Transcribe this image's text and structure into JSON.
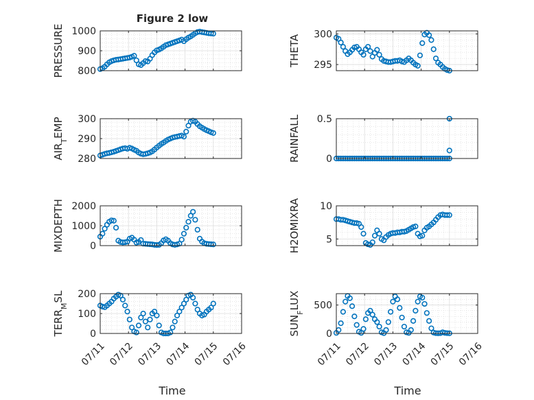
{
  "chart_data": [
    {
      "type": "scatter",
      "title": "Figure 2 low",
      "xlabel": "",
      "ylabel": "PRESSURE",
      "xlim": [
        "07/11",
        "07/16"
      ],
      "ylim": [
        800,
        1000
      ],
      "xticks": [
        "07/11",
        "07/12",
        "07/13",
        "07/14",
        "07/15",
        "07/16"
      ],
      "yticks": [
        800,
        900,
        1000
      ],
      "grid": true,
      "series": [
        {
          "color": "#0072BD",
          "x": [
            0.0,
            0.08,
            0.16,
            0.24,
            0.32,
            0.4,
            0.48,
            0.56,
            0.64,
            0.72,
            0.8,
            0.88,
            0.96,
            1.04,
            1.12,
            1.2,
            1.28,
            1.36,
            1.44,
            1.52,
            1.6,
            1.68,
            1.76,
            1.84,
            1.92,
            2.0,
            2.08,
            2.16,
            2.24,
            2.32,
            2.4,
            2.48,
            2.56,
            2.64,
            2.72,
            2.8,
            2.88,
            2.96,
            3.04,
            3.12,
            3.2,
            3.28,
            3.36,
            3.44,
            3.52,
            3.6,
            3.68,
            3.76,
            3.84,
            3.92,
            4.0
          ],
          "y": [
            808,
            812,
            820,
            832,
            842,
            848,
            852,
            855,
            856,
            858,
            860,
            862,
            864,
            866,
            870,
            875,
            852,
            832,
            828,
            838,
            848,
            846,
            860,
            878,
            892,
            902,
            906,
            912,
            920,
            928,
            932,
            936,
            940,
            944,
            948,
            952,
            956,
            948,
            958,
            966,
            972,
            980,
            988,
            994,
            996,
            994,
            992,
            990,
            988,
            987,
            986
          ]
        }
      ]
    },
    {
      "type": "scatter",
      "ylabel": "THETA",
      "xlim": [
        "07/11",
        "07/16"
      ],
      "ylim": [
        294,
        300.5
      ],
      "xticks": [
        "07/11",
        "07/12",
        "07/13",
        "07/14",
        "07/15",
        "07/16"
      ],
      "yticks": [
        295,
        300
      ],
      "grid": true,
      "series": [
        {
          "color": "#0072BD",
          "x": [
            0.0,
            0.08,
            0.16,
            0.24,
            0.32,
            0.4,
            0.48,
            0.56,
            0.64,
            0.72,
            0.8,
            0.88,
            0.96,
            1.04,
            1.12,
            1.2,
            1.28,
            1.36,
            1.44,
            1.52,
            1.6,
            1.68,
            1.76,
            1.84,
            1.92,
            2.0,
            2.08,
            2.16,
            2.24,
            2.32,
            2.4,
            2.48,
            2.56,
            2.64,
            2.72,
            2.8,
            2.88,
            2.96,
            3.04,
            3.12,
            3.2,
            3.28,
            3.36,
            3.44,
            3.52,
            3.6,
            3.68,
            3.76,
            3.84,
            3.92,
            4.0
          ],
          "y": [
            299.4,
            299.2,
            298.6,
            297.9,
            297.2,
            296.7,
            297.0,
            297.4,
            297.8,
            297.9,
            297.5,
            297.0,
            296.6,
            297.5,
            297.9,
            297.2,
            296.3,
            296.9,
            297.4,
            296.6,
            295.9,
            295.6,
            295.5,
            295.4,
            295.4,
            295.5,
            295.6,
            295.6,
            295.7,
            295.5,
            295.4,
            295.7,
            296.0,
            295.7,
            295.3,
            295.0,
            294.8,
            296.5,
            298.5,
            299.9,
            300.2,
            299.8,
            299.0,
            297.5,
            296.0,
            295.3,
            295.0,
            294.6,
            294.3,
            294.1,
            294.0
          ]
        }
      ]
    },
    {
      "type": "scatter",
      "ylabel": "AIR_TEMP",
      "xlim": [
        "07/11",
        "07/16"
      ],
      "ylim": [
        280,
        300
      ],
      "xticks": [
        "07/11",
        "07/12",
        "07/13",
        "07/14",
        "07/15",
        "07/16"
      ],
      "yticks": [
        280,
        290,
        300
      ],
      "grid": true,
      "series": [
        {
          "color": "#0072BD",
          "x": [
            0.0,
            0.08,
            0.16,
            0.24,
            0.32,
            0.4,
            0.48,
            0.56,
            0.64,
            0.72,
            0.8,
            0.88,
            0.96,
            1.04,
            1.12,
            1.2,
            1.28,
            1.36,
            1.44,
            1.52,
            1.6,
            1.68,
            1.76,
            1.84,
            1.92,
            2.0,
            2.08,
            2.16,
            2.24,
            2.32,
            2.4,
            2.48,
            2.56,
            2.64,
            2.72,
            2.8,
            2.88,
            2.96,
            3.04,
            3.12,
            3.2,
            3.28,
            3.36,
            3.44,
            3.52,
            3.6,
            3.68,
            3.76,
            3.84,
            3.92,
            4.0
          ],
          "y": [
            281.5,
            281.9,
            282.3,
            282.6,
            282.8,
            283.1,
            283.4,
            283.8,
            284.2,
            284.6,
            285.0,
            285.2,
            284.9,
            285.4,
            285.0,
            284.4,
            283.9,
            283.0,
            282.4,
            282.1,
            282.3,
            282.6,
            283.0,
            283.6,
            284.5,
            285.5,
            286.4,
            287.3,
            288.0,
            288.8,
            289.5,
            290.0,
            290.5,
            290.8,
            291.0,
            291.3,
            291.5,
            291.0,
            293.5,
            296.5,
            298.5,
            299.0,
            298.5,
            297.3,
            296.2,
            295.5,
            294.8,
            294.2,
            293.7,
            293.2,
            292.8
          ]
        }
      ]
    },
    {
      "type": "scatter",
      "ylabel": "RAINFALL",
      "xlim": [
        "07/11",
        "07/16"
      ],
      "ylim": [
        0,
        0.5
      ],
      "xticks": [
        "07/11",
        "07/12",
        "07/13",
        "07/14",
        "07/15",
        "07/16"
      ],
      "yticks": [
        0,
        0.5
      ],
      "grid": true,
      "series": [
        {
          "color": "#0072BD",
          "x": [
            0.0,
            0.08,
            0.16,
            0.24,
            0.32,
            0.4,
            0.48,
            0.56,
            0.64,
            0.72,
            0.8,
            0.88,
            0.96,
            1.04,
            1.12,
            1.2,
            1.28,
            1.36,
            1.44,
            1.52,
            1.6,
            1.68,
            1.76,
            1.84,
            1.92,
            2.0,
            2.08,
            2.16,
            2.24,
            2.32,
            2.4,
            2.48,
            2.56,
            2.64,
            2.72,
            2.8,
            2.88,
            2.96,
            3.04,
            3.12,
            3.2,
            3.28,
            3.36,
            3.44,
            3.52,
            3.6,
            3.68,
            3.76,
            3.84,
            3.92,
            4.0,
            4.0,
            4.0
          ],
          "y": [
            0,
            0,
            0,
            0,
            0,
            0,
            0,
            0,
            0,
            0,
            0,
            0,
            0,
            0,
            0,
            0,
            0,
            0,
            0,
            0,
            0,
            0,
            0,
            0,
            0,
            0,
            0,
            0,
            0,
            0,
            0,
            0,
            0,
            0,
            0,
            0,
            0,
            0,
            0,
            0,
            0,
            0,
            0,
            0,
            0,
            0,
            0,
            0,
            0,
            0,
            0,
            0.1,
            0.5
          ]
        }
      ]
    },
    {
      "type": "scatter",
      "ylabel": "MIXDEPTH",
      "xlim": [
        "07/11",
        "07/16"
      ],
      "ylim": [
        0,
        2000
      ],
      "xticks": [
        "07/11",
        "07/12",
        "07/13",
        "07/14",
        "07/15",
        "07/16"
      ],
      "yticks": [
        0,
        1000,
        2000
      ],
      "grid": true,
      "series": [
        {
          "color": "#0072BD",
          "x": [
            0.0,
            0.08,
            0.16,
            0.24,
            0.32,
            0.4,
            0.48,
            0.56,
            0.64,
            0.72,
            0.8,
            0.88,
            0.96,
            1.04,
            1.12,
            1.2,
            1.28,
            1.36,
            1.44,
            1.52,
            1.6,
            1.68,
            1.76,
            1.84,
            1.92,
            2.0,
            2.08,
            2.16,
            2.24,
            2.32,
            2.4,
            2.48,
            2.56,
            2.64,
            2.72,
            2.8,
            2.88,
            2.96,
            3.04,
            3.12,
            3.2,
            3.28,
            3.36,
            3.44,
            3.52,
            3.6,
            3.68,
            3.76,
            3.84,
            3.92,
            4.0
          ],
          "y": [
            450,
            600,
            850,
            1050,
            1200,
            1270,
            1250,
            900,
            250,
            180,
            160,
            170,
            200,
            350,
            400,
            300,
            150,
            180,
            280,
            100,
            90,
            80,
            70,
            60,
            40,
            30,
            40,
            120,
            260,
            320,
            250,
            120,
            60,
            40,
            60,
            100,
            300,
            600,
            900,
            1200,
            1500,
            1700,
            1300,
            800,
            350,
            200,
            120,
            90,
            80,
            70,
            60
          ]
        }
      ]
    },
    {
      "type": "scatter",
      "ylabel": "H2OMIXRA",
      "xlim": [
        "07/11",
        "07/16"
      ],
      "ylim": [
        4,
        10
      ],
      "xticks": [
        "07/11",
        "07/12",
        "07/13",
        "07/14",
        "07/15",
        "07/16"
      ],
      "yticks": [
        5,
        10
      ],
      "grid": true,
      "series": [
        {
          "color": "#0072BD",
          "x": [
            0.0,
            0.08,
            0.16,
            0.24,
            0.32,
            0.4,
            0.48,
            0.56,
            0.64,
            0.72,
            0.8,
            0.88,
            0.96,
            1.04,
            1.12,
            1.2,
            1.28,
            1.36,
            1.44,
            1.52,
            1.6,
            1.68,
            1.76,
            1.84,
            1.92,
            2.0,
            2.08,
            2.16,
            2.24,
            2.32,
            2.4,
            2.48,
            2.56,
            2.64,
            2.72,
            2.8,
            2.88,
            2.96,
            3.04,
            3.12,
            3.2,
            3.28,
            3.36,
            3.44,
            3.52,
            3.6,
            3.68,
            3.76,
            3.84,
            3.92,
            4.0
          ],
          "y": [
            8.0,
            8.0,
            7.9,
            7.9,
            7.8,
            7.7,
            7.6,
            7.5,
            7.4,
            7.4,
            7.3,
            6.8,
            5.8,
            4.4,
            4.2,
            4.1,
            4.5,
            5.5,
            6.3,
            5.8,
            5.0,
            4.8,
            5.3,
            5.6,
            5.8,
            5.9,
            5.9,
            6.0,
            6.0,
            6.1,
            6.1,
            6.2,
            6.4,
            6.6,
            6.8,
            6.9,
            5.8,
            5.4,
            5.5,
            6.3,
            6.7,
            6.9,
            7.2,
            7.5,
            7.9,
            8.3,
            8.6,
            8.7,
            8.6,
            8.6,
            8.6
          ]
        }
      ]
    },
    {
      "type": "scatter",
      "ylabel": "TERR_MSL",
      "xlim": [
        "07/11",
        "07/16"
      ],
      "ylim": [
        0,
        200
      ],
      "xticks": [
        "07/11",
        "07/12",
        "07/13",
        "07/14",
        "07/15",
        "07/16"
      ],
      "yticks": [
        0,
        100,
        200
      ],
      "grid": true,
      "series": [
        {
          "color": "#0072BD",
          "x": [
            0.0,
            0.08,
            0.16,
            0.24,
            0.32,
            0.4,
            0.48,
            0.56,
            0.64,
            0.72,
            0.8,
            0.88,
            0.96,
            1.04,
            1.12,
            1.2,
            1.28,
            1.36,
            1.44,
            1.52,
            1.6,
            1.68,
            1.76,
            1.84,
            1.92,
            2.0,
            2.08,
            2.16,
            2.24,
            2.32,
            2.4,
            2.48,
            2.56,
            2.64,
            2.72,
            2.8,
            2.88,
            2.96,
            3.04,
            3.12,
            3.2,
            3.28,
            3.36,
            3.44,
            3.52,
            3.6,
            3.68,
            3.76,
            3.84,
            3.92,
            4.0
          ],
          "y": [
            140,
            135,
            132,
            140,
            150,
            160,
            175,
            185,
            195,
            190,
            170,
            140,
            110,
            70,
            30,
            10,
            5,
            40,
            80,
            100,
            60,
            30,
            70,
            100,
            110,
            90,
            40,
            5,
            0,
            0,
            0,
            5,
            30,
            60,
            90,
            110,
            130,
            150,
            170,
            190,
            195,
            180,
            150,
            120,
            100,
            90,
            95,
            110,
            120,
            130,
            150
          ]
        }
      ]
    },
    {
      "type": "scatter",
      "ylabel": "SUN_FLUX",
      "xlim": [
        "07/11",
        "07/16"
      ],
      "ylim": [
        0,
        700
      ],
      "xticks": [
        "07/11",
        "07/12",
        "07/13",
        "07/14",
        "07/15",
        "07/16"
      ],
      "yticks": [
        0,
        500
      ],
      "grid": true,
      "series": [
        {
          "color": "#0072BD",
          "x": [
            0.0,
            0.08,
            0.16,
            0.24,
            0.32,
            0.4,
            0.48,
            0.56,
            0.64,
            0.72,
            0.8,
            0.88,
            0.96,
            1.04,
            1.12,
            1.2,
            1.28,
            1.36,
            1.44,
            1.52,
            1.6,
            1.68,
            1.76,
            1.84,
            1.92,
            2.0,
            2.08,
            2.16,
            2.24,
            2.32,
            2.4,
            2.48,
            2.56,
            2.64,
            2.72,
            2.8,
            2.88,
            2.96,
            3.04,
            3.12,
            3.2,
            3.28,
            3.36,
            3.44,
            3.52,
            3.6,
            3.68,
            3.76,
            3.84,
            3.92,
            4.0
          ],
          "y": [
            10,
            60,
            180,
            380,
            560,
            660,
            620,
            480,
            300,
            150,
            30,
            10,
            80,
            250,
            360,
            400,
            330,
            250,
            200,
            120,
            20,
            5,
            60,
            200,
            380,
            560,
            650,
            600,
            450,
            280,
            120,
            20,
            10,
            60,
            220,
            400,
            560,
            650,
            630,
            520,
            360,
            220,
            90,
            15,
            5,
            3,
            5,
            20,
            10,
            5,
            3
          ]
        }
      ]
    }
  ]
}
